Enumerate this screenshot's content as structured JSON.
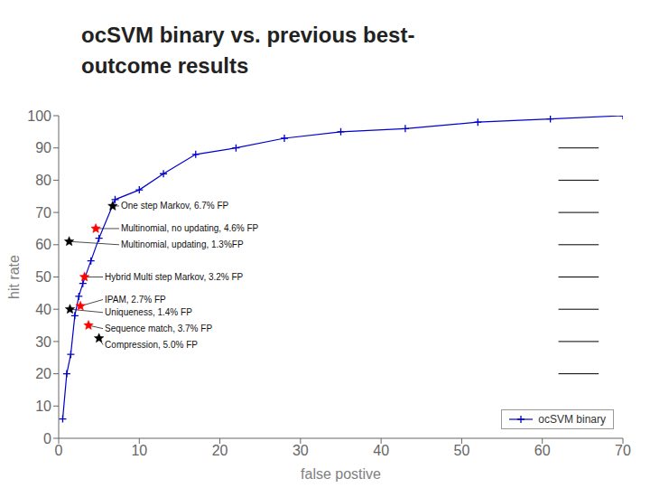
{
  "chart_data": {
    "type": "line",
    "title": "ocSVM binary vs. previous best-\noutcome results",
    "x_label": "false postive",
    "y_label": "hit rate",
    "xlim": [
      0,
      70
    ],
    "ylim": [
      0,
      100
    ],
    "xticks": [
      0,
      10,
      20,
      30,
      40,
      50,
      60,
      70
    ],
    "yticks": [
      0,
      10,
      20,
      30,
      40,
      50,
      60,
      70,
      80,
      90,
      100
    ],
    "grid": false,
    "legend": "lower right",
    "series": [
      {
        "name": "ocSVM binary",
        "color": "#0000cc",
        "marker": "plus",
        "line_style": "solid",
        "x": [
          0.5,
          1,
          1.5,
          2,
          2.5,
          3,
          4,
          5,
          7,
          10,
          13,
          17,
          22,
          28,
          35,
          43,
          52,
          61,
          70
        ],
        "values": [
          6,
          20,
          26,
          38,
          44,
          48,
          55,
          62,
          74,
          77,
          82,
          88,
          90,
          93,
          95,
          96,
          98,
          99,
          100
        ]
      }
    ],
    "annotations": [
      {
        "text": "One step Markov, 6.7% FP",
        "x": 6.7,
        "y": 72,
        "color": "black",
        "marker": "star",
        "text_x": 7.5,
        "text_y": 72
      },
      {
        "text": "Multinomial, no updating, 4.6% FP",
        "x": 4.6,
        "y": 65,
        "color": "red",
        "marker": "star",
        "text_x": 7.5,
        "text_y": 65
      },
      {
        "text": "Multinomial, updating, 1.3%FP",
        "x": 1.3,
        "y": 61,
        "color": "black",
        "marker": "star",
        "text_x": 7.5,
        "text_y": 60
      },
      {
        "text": "Hybrid Multi step Markov, 3.2% FP",
        "x": 3.2,
        "y": 50,
        "color": "red",
        "marker": "star",
        "text_x": 5.5,
        "text_y": 50
      },
      {
        "text": "IPAM, 2.7% FP",
        "x": 2.7,
        "y": 41,
        "color": "red",
        "marker": "star",
        "text_x": 5.5,
        "text_y": 43
      },
      {
        "text": "Uniqueness, 1.4% FP",
        "x": 1.4,
        "y": 40,
        "color": "black",
        "marker": "star",
        "text_x": 5.5,
        "text_y": 39
      },
      {
        "text": "Sequence match, 3.7% FP",
        "x": 3.7,
        "y": 35,
        "color": "red",
        "marker": "star",
        "text_x": 5.5,
        "text_y": 34
      },
      {
        "text": "Compression, 5.0% FP",
        "x": 5.0,
        "y": 31,
        "color": "black",
        "marker": "star",
        "text_x": 5.5,
        "text_y": 29
      }
    ],
    "dashes": {
      "color": "black",
      "x": [
        62,
        67
      ],
      "y": [
        90,
        80,
        70,
        60,
        50,
        40,
        30,
        20
      ]
    }
  }
}
